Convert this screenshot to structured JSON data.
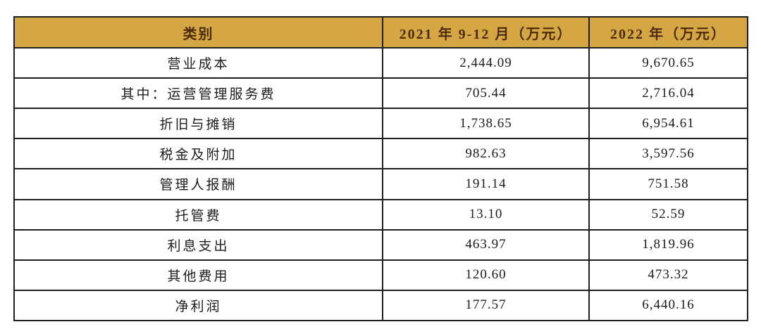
{
  "table": {
    "title_hint": "cost-and-profit-table",
    "unit": "万元",
    "columns": [
      "类别",
      "2021 年 9-12 月（万元）",
      "2022 年（万元）"
    ],
    "rows": [
      {
        "label": "营业成本",
        "value_2021": "2,444.09",
        "value_2022": "9,670.65"
      },
      {
        "label": "其中：运营管理服务费",
        "value_2021": "705.44",
        "value_2022": "2,716.04"
      },
      {
        "label": "折旧与摊销",
        "value_2021": "1,738.65",
        "value_2022": "6,954.61"
      },
      {
        "label": "税金及附加",
        "value_2021": "982.63",
        "value_2022": "3,597.56"
      },
      {
        "label": "管理人报酬",
        "value_2021": "191.14",
        "value_2022": "751.58"
      },
      {
        "label": "托管费",
        "value_2021": "13.10",
        "value_2022": "52.59"
      },
      {
        "label": "利息支出",
        "value_2021": "463.97",
        "value_2022": "1,819.96"
      },
      {
        "label": "其他费用",
        "value_2021": "120.60",
        "value_2022": "473.32"
      },
      {
        "label": "净利润",
        "value_2021": "177.57",
        "value_2022": "6,440.16"
      }
    ]
  },
  "colors": {
    "header_bg": "#d5a744",
    "header_text": "#4d2a0a",
    "body_text": "#1c1c1c",
    "border": "#1f1f1f",
    "page_bg": "#ffffff"
  }
}
